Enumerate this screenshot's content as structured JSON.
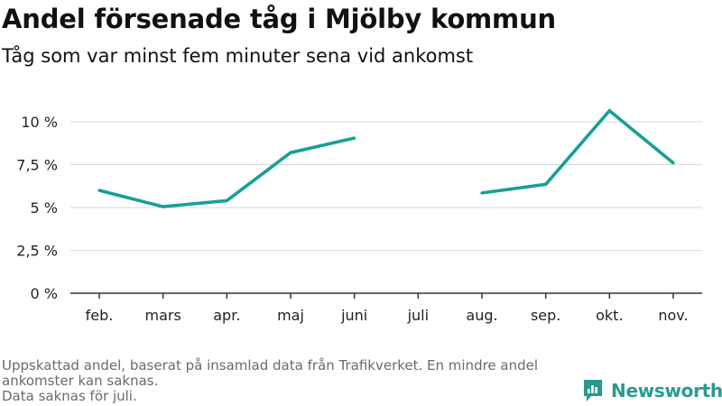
{
  "header": {
    "title": "Andel försenade tåg i Mjölby kommun",
    "subtitle": "Tåg som var minst fem minuter sena vid ankomst"
  },
  "chart_data": {
    "type": "line",
    "categories": [
      "feb.",
      "mars",
      "apr.",
      "maj",
      "juni",
      "juli",
      "aug.",
      "sep.",
      "okt.",
      "nov."
    ],
    "series": [
      {
        "values": [
          6.0,
          5.05,
          5.4,
          8.2,
          9.05,
          null,
          5.85,
          6.35,
          10.65,
          7.6
        ]
      }
    ],
    "ylim": [
      0,
      10
    ],
    "yticks": [
      0,
      2.5,
      5,
      7.5,
      10
    ],
    "ytick_labels": [
      "0 %",
      "2,5 %",
      "5 %",
      "7,5 %",
      "10 %"
    ],
    "grid": true,
    "line_color": "#16a096",
    "grid_color": "#d9d9d9",
    "axis_color": "#333333"
  },
  "footnote": {
    "line1": "Uppskattad andel, baserat på insamlad data från Trafikverket. En mindre andel ankomster kan saknas.",
    "line2": "Data saknas för juli."
  },
  "brand": {
    "name": "Newsworthy",
    "color": "#2a9a8f",
    "icon": "newsworthy-logo-icon"
  }
}
